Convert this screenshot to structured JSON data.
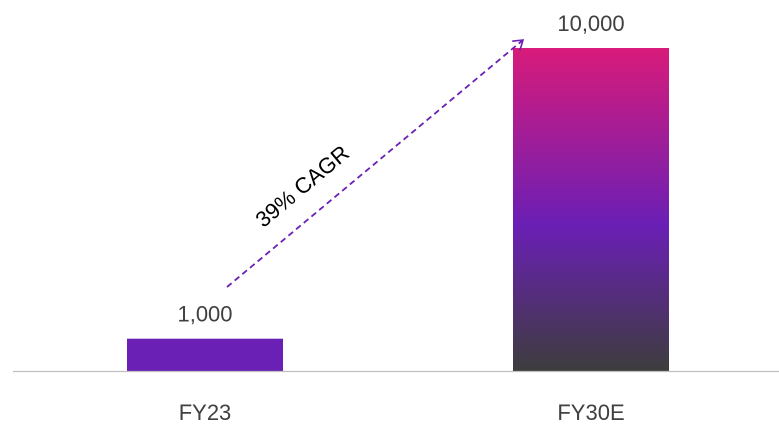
{
  "chart_data": {
    "type": "bar",
    "categories": [
      "FY23",
      "FY30E"
    ],
    "values": [
      1000,
      10000
    ],
    "data_labels": [
      "1,000",
      "10,000"
    ],
    "ylim": [
      0,
      10000
    ],
    "grid": false,
    "annotation": "39% CAGR",
    "colors": {
      "FY23": "#6a1fb5",
      "FY30E_gradient": [
        "#d81b7a",
        "#6a1fb5",
        "#3d3d3d"
      ],
      "arrow": "#6a1fb5",
      "axis": "#bfbfbf",
      "text": "#404040"
    }
  }
}
